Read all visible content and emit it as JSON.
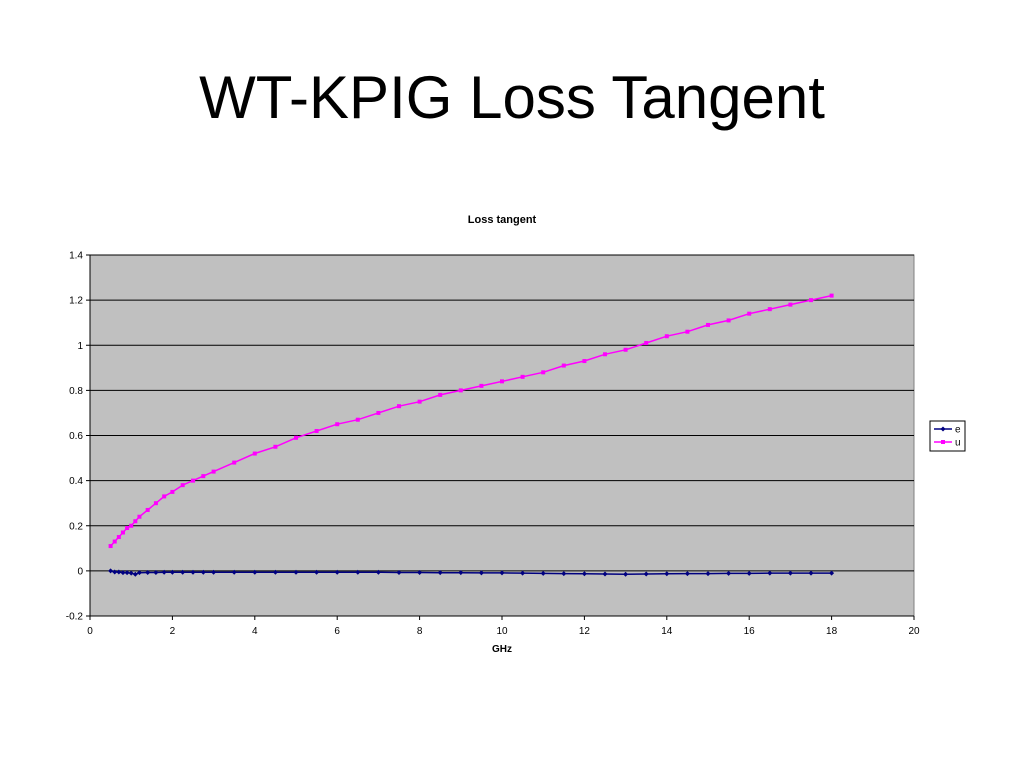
{
  "slide": {
    "title": "WT-KPIG Loss Tangent"
  },
  "chart_data": {
    "type": "line",
    "title": "Loss tangent",
    "xlabel": "GHz",
    "ylabel": "",
    "xlim": [
      0,
      20
    ],
    "ylim": [
      -0.2,
      1.4
    ],
    "x_ticks": [
      "0",
      "2",
      "4",
      "6",
      "8",
      "10",
      "12",
      "14",
      "16",
      "18",
      "20"
    ],
    "y_ticks": [
      "1.4",
      "1.2",
      "1",
      "0.8",
      "0.6",
      "0.4",
      "0.2",
      "0",
      "-0.2"
    ],
    "grid": "horizontal",
    "plot_background": "#c0c0c0",
    "legend_position": "right",
    "x": [
      0.5,
      0.6,
      0.7,
      0.8,
      0.9,
      1.0,
      1.1,
      1.2,
      1.4,
      1.6,
      1.8,
      2.0,
      2.25,
      2.5,
      2.75,
      3.0,
      3.5,
      4.0,
      4.5,
      5.0,
      5.5,
      6.0,
      6.5,
      7.0,
      7.5,
      8.0,
      8.5,
      9.0,
      9.5,
      10.0,
      10.5,
      11.0,
      11.5,
      12.0,
      12.5,
      13.0,
      13.5,
      14.0,
      14.5,
      15.0,
      15.5,
      16.0,
      16.5,
      17.0,
      17.5,
      18.0
    ],
    "series": [
      {
        "name": "e",
        "color": "#000080",
        "marker": "diamond",
        "values": [
          0.0,
          -0.005,
          -0.005,
          -0.008,
          -0.008,
          -0.01,
          -0.015,
          -0.008,
          -0.007,
          -0.007,
          -0.006,
          -0.006,
          -0.006,
          -0.006,
          -0.006,
          -0.006,
          -0.006,
          -0.006,
          -0.006,
          -0.006,
          -0.006,
          -0.006,
          -0.006,
          -0.006,
          -0.007,
          -0.007,
          -0.008,
          -0.008,
          -0.009,
          -0.009,
          -0.01,
          -0.011,
          -0.012,
          -0.013,
          -0.014,
          -0.015,
          -0.014,
          -0.013,
          -0.012,
          -0.012,
          -0.011,
          -0.011,
          -0.01,
          -0.01,
          -0.01,
          -0.01
        ]
      },
      {
        "name": "u",
        "color": "#ff00ff",
        "marker": "square",
        "values": [
          0.11,
          0.13,
          0.15,
          0.17,
          0.19,
          0.2,
          0.22,
          0.24,
          0.27,
          0.3,
          0.33,
          0.35,
          0.38,
          0.4,
          0.42,
          0.44,
          0.48,
          0.52,
          0.55,
          0.59,
          0.62,
          0.65,
          0.67,
          0.7,
          0.73,
          0.75,
          0.78,
          0.8,
          0.82,
          0.84,
          0.86,
          0.88,
          0.91,
          0.93,
          0.96,
          0.98,
          1.01,
          1.04,
          1.06,
          1.09,
          1.11,
          1.14,
          1.16,
          1.18,
          1.2,
          1.22
        ]
      }
    ]
  }
}
